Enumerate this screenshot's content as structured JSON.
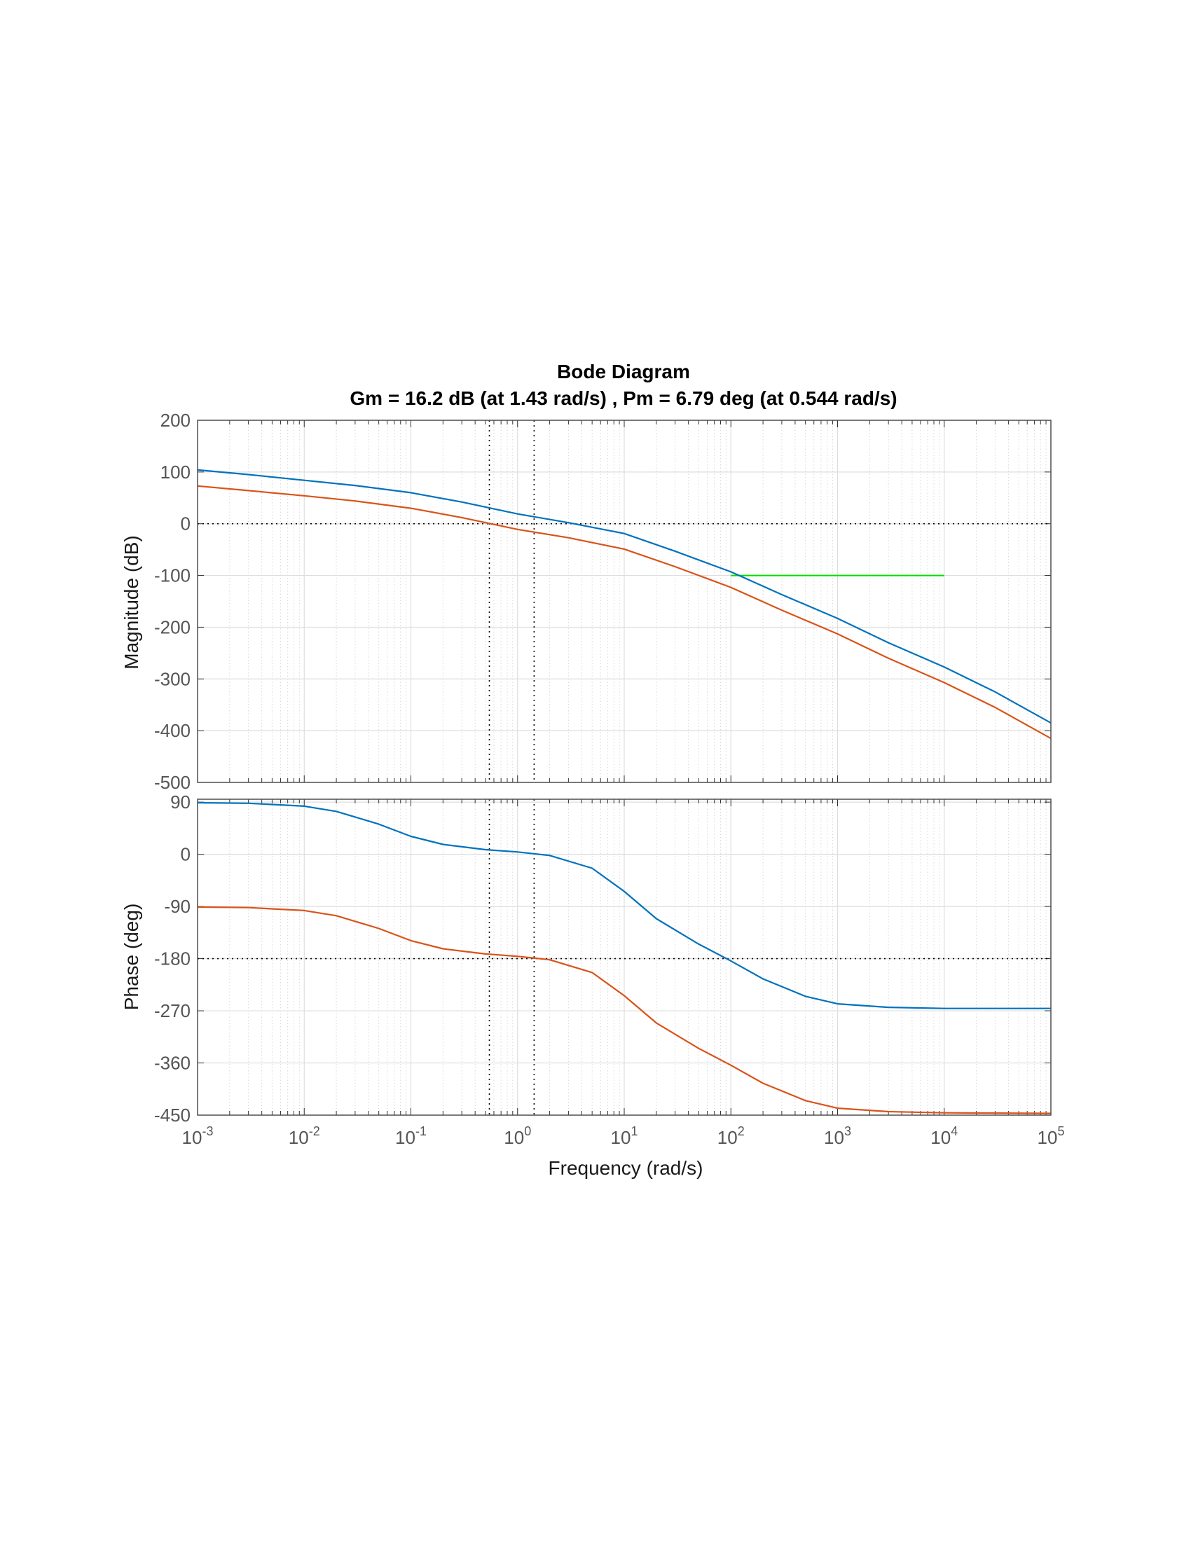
{
  "chart_data": {
    "type": "line",
    "title": "Bode Diagram",
    "subtitle": "Gm = 16.2 dB (at 1.43 rad/s) ,  Pm = 6.79 deg (at 0.544 rad/s)",
    "xlabel": "Frequency  (rad/s)",
    "x_scale": "log",
    "xlim": [
      0.001,
      100000
    ],
    "x_tick_labels": [
      {
        "base": "10",
        "exp": "-3"
      },
      {
        "base": "10",
        "exp": "-2"
      },
      {
        "base": "10",
        "exp": "-1"
      },
      {
        "base": "10",
        "exp": "0"
      },
      {
        "base": "10",
        "exp": "1"
      },
      {
        "base": "10",
        "exp": "2"
      },
      {
        "base": "10",
        "exp": "3"
      },
      {
        "base": "10",
        "exp": "4"
      },
      {
        "base": "10",
        "exp": "5"
      }
    ],
    "grid": true,
    "colors": {
      "series1": "#0072BD",
      "series2": "#D95319",
      "hline": "#00E000",
      "margin_lines": "#000000"
    },
    "panels": [
      {
        "name": "magnitude",
        "ylabel": "Magnitude (dB)",
        "ylim": [
          -500,
          200
        ],
        "yticks": [
          200,
          100,
          0,
          -100,
          -200,
          -300,
          -400,
          -500
        ],
        "reference_line": 0,
        "series": [
          {
            "x": [
              0.001,
              0.003,
              0.01,
              0.03,
              0.1,
              0.3,
              1,
              3,
              10,
              30,
              100,
              300,
              1000,
              3000,
              10000,
              30000,
              100000
            ],
            "y": [
              104,
              95,
              84,
              74,
              60,
              42,
              19,
              2,
              -19,
              -53,
              -93,
              -137,
              -183,
              -230,
              -277,
              -325,
              -385
            ]
          },
          {
            "x": [
              0.001,
              0.003,
              0.01,
              0.03,
              0.1,
              0.3,
              1,
              3,
              10,
              30,
              100,
              300,
              1000,
              3000,
              10000,
              30000,
              100000
            ],
            "y": [
              73,
              64,
              54,
              44,
              30,
              12,
              -11,
              -27,
              -49,
              -83,
              -123,
              -167,
              -213,
              -260,
              -307,
              -355,
              -415
            ]
          }
        ],
        "hline": {
          "x": [
            100,
            10000
          ],
          "y": -100
        }
      },
      {
        "name": "phase",
        "ylabel": "Phase (deg)",
        "ylim": [
          -450,
          95
        ],
        "yticks": [
          90,
          0,
          -90,
          -180,
          -270,
          -360,
          -450
        ],
        "reference_line": -180,
        "series": [
          {
            "x": [
              0.001,
              0.003,
              0.01,
              0.02,
              0.05,
              0.1,
              0.2,
              0.5,
              1,
              2,
              5,
              10,
              20,
              50,
              100,
              200,
              500,
              1000,
              3000,
              10000,
              100000
            ],
            "y": [
              89,
              88,
              83,
              74,
              52,
              31,
              17,
              8,
              4,
              -2,
              -24,
              -64,
              -111,
              -155,
              -184,
              -215,
              -245,
              -258,
              -264,
              -266,
              -266
            ]
          },
          {
            "x": [
              0.001,
              0.003,
              0.01,
              0.02,
              0.05,
              0.1,
              0.2,
              0.5,
              1,
              2,
              5,
              10,
              20,
              50,
              100,
              200,
              500,
              1000,
              3000,
              10000,
              100000
            ],
            "y": [
              -91,
              -92,
              -97,
              -106,
              -128,
              -149,
              -163,
              -172,
              -176,
              -182,
              -204,
              -244,
              -291,
              -335,
              -364,
              -395,
              -425,
              -438,
              -444,
              -446,
              -447
            ]
          }
        ],
        "vlines_note": "margin markers at 0.544 and 1.43 rad/s"
      }
    ],
    "margin_markers": {
      "pm_freq": 0.544,
      "gm_freq": 1.43
    }
  }
}
